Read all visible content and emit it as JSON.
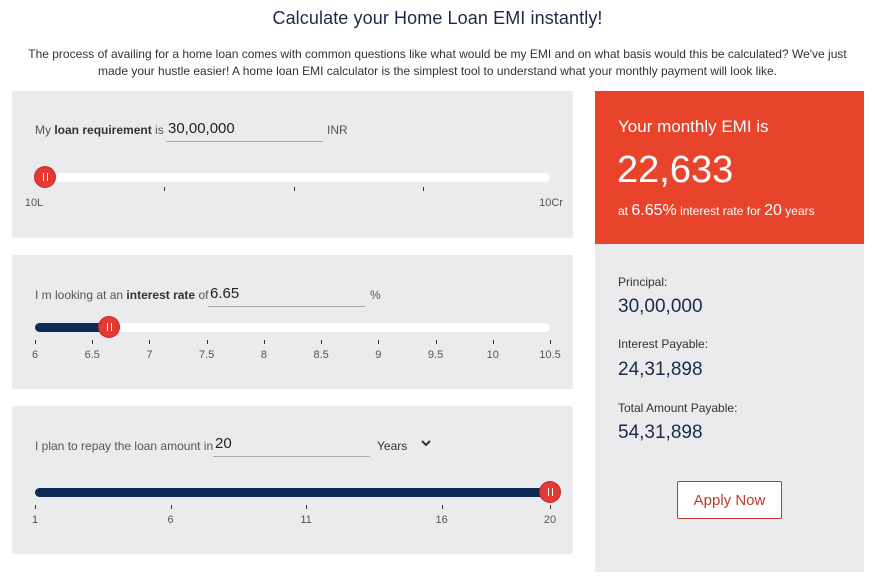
{
  "header": {
    "title": "Calculate your Home Loan EMI instantly!",
    "intro": "The process of availing for a home loan comes with common questions like what would be my EMI and on what basis would this be calculated? We've just made your hustle easier! A home loan EMI calculator is the simplest tool to understand what your monthly payment will look like."
  },
  "loan": {
    "label_pre": "My",
    "label_bold": "loan requirement",
    "label_post": "is",
    "value": "30,00,000",
    "unit": "INR",
    "slider_level": 0.02,
    "tick_min": "10L",
    "tick_max": "10Cr"
  },
  "rate": {
    "label_pre": "I m looking at an",
    "label_bold": "interest rate",
    "label_post": "of",
    "value": "6.65",
    "unit": "%",
    "slider_level": 0.144,
    "ticks": [
      "6",
      "6.5",
      "7",
      "7.5",
      "8",
      "8.5",
      "9",
      "9.5",
      "10",
      "10.5"
    ]
  },
  "tenure": {
    "label": "I plan to repay the loan amount in",
    "value": "20",
    "unit_selected": "Years",
    "slider_level": 1.0,
    "ticks": [
      "1",
      "6",
      "11",
      "16",
      "20"
    ]
  },
  "result": {
    "heading": "Your monthly EMI is",
    "emi": "22,633",
    "note_at": "at",
    "note_rate": "6.65%",
    "note_mid": "interest rate for",
    "note_years": "20",
    "note_end": "years",
    "principal_label": "Principal:",
    "principal": "30,00,000",
    "interest_label": "Interest Payable:",
    "interest": "24,31,898",
    "total_label": "Total Amount Payable:",
    "total": "54,31,898",
    "apply_label": "Apply Now"
  },
  "colors": {
    "accent": "#e8442b",
    "slider_fill": "#0e2a55",
    "knob": "#e53935"
  }
}
